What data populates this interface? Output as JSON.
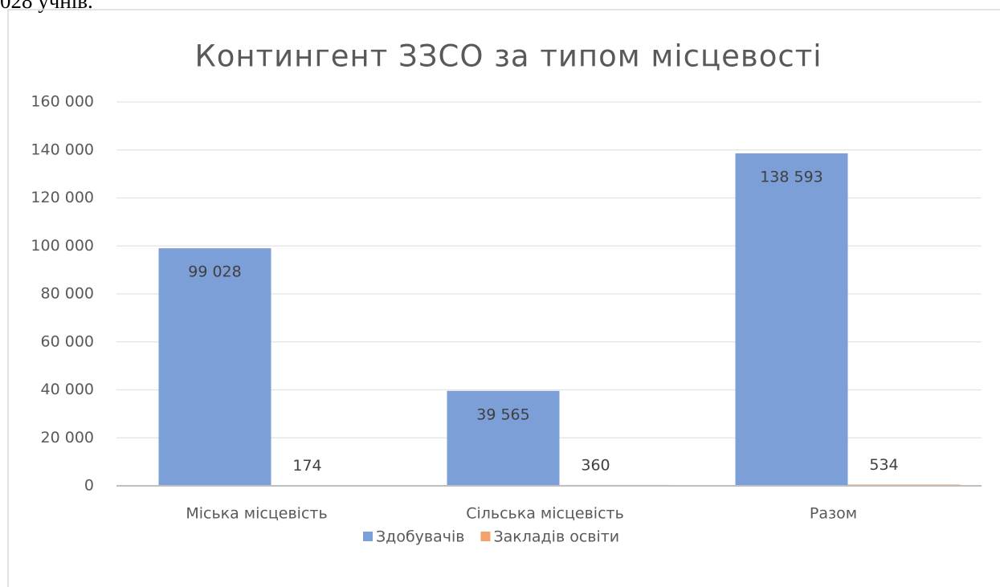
{
  "page_text": "028 учнів.",
  "chart_data": {
    "type": "bar",
    "title": "Контингент ЗЗСО за типом місцевості",
    "categories": [
      "Міська місцевість",
      "Сільська місцевість",
      "Разом"
    ],
    "series": [
      {
        "name": "Здобувачів",
        "color": "#7c9fd8",
        "values": [
          99028,
          39565,
          138593
        ],
        "value_labels": [
          "99 028",
          "39 565",
          "138 593"
        ]
      },
      {
        "name": "Закладів освіти",
        "color": "#f4a26c",
        "values": [
          174,
          360,
          534
        ]
      }
    ],
    "ylim": [
      0,
      160000
    ],
    "yticks": [
      0,
      {
        "value": 20000,
        "label": "20 000"
      },
      {
        "value": 40000,
        "label": "40 000"
      },
      {
        "value": 60000,
        "label": "60 000"
      },
      {
        "value": 80000,
        "label": "80 000"
      },
      {
        "value": 100000,
        "label": "100 000"
      },
      {
        "value": 120000,
        "label": "120 000"
      },
      {
        "value": 140000,
        "label": "140 000"
      },
      {
        "value": 160000,
        "label": "160 000"
      }
    ],
    "grid": true,
    "legend": "bottom"
  }
}
